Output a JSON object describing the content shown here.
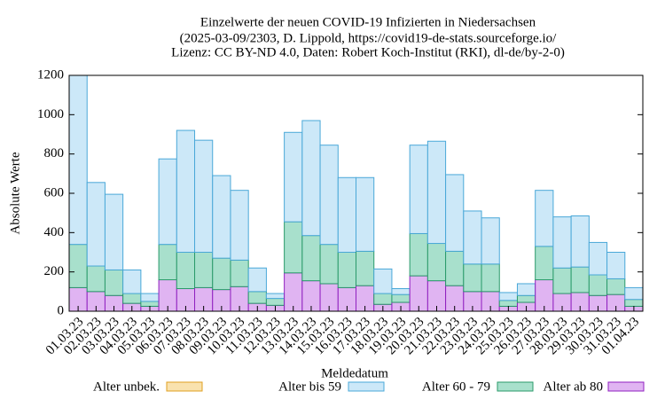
{
  "chart_data": {
    "type": "stacked-bar",
    "title": [
      "Einzelwerte der neuen COVID-19 Infizierten in Niedersachsen",
      "(2025-03-09/2303, D. Lippold, https://covid19-de-stats.sourceforge.io/",
      "Lizenz: CC BY-ND 4.0, Daten: Robert Koch-Institut (RKI), dl-de/by-2-0)"
    ],
    "x_label": "Meldedatum",
    "y_label": "Absolute Werte",
    "categories": [
      "01.03.23",
      "02.03.23",
      "03.03.23",
      "04.03.23",
      "05.03.23",
      "06.03.23",
      "07.03.23",
      "08.03.23",
      "09.03.23",
      "10.03.23",
      "11.03.23",
      "12.03.23",
      "13.03.23",
      "14.03.23",
      "15.03.23",
      "16.03.23",
      "17.03.23",
      "18.03.23",
      "19.03.23",
      "20.03.23",
      "21.03.23",
      "22.03.23",
      "23.03.23",
      "24.03.23",
      "25.03.23",
      "26.03.23",
      "27.03.23",
      "28.03.23",
      "29.03.23",
      "30.03.23",
      "31.03.23",
      "01.04.23"
    ],
    "series": [
      {
        "name": "Alter unbek.",
        "color": "#f9e2ae",
        "stroke": "#e0a020",
        "values": [
          0,
          0,
          0,
          0,
          0,
          0,
          0,
          0,
          0,
          0,
          0,
          0,
          0,
          0,
          0,
          0,
          0,
          0,
          0,
          0,
          0,
          0,
          0,
          0,
          0,
          0,
          0,
          0,
          0,
          0,
          0,
          0
        ]
      },
      {
        "name": "Alter bis 59",
        "color": "#cce8f8",
        "stroke": "#4aa8d8",
        "values": [
          920,
          425,
          385,
          120,
          40,
          435,
          620,
          570,
          420,
          355,
          120,
          25,
          455,
          585,
          505,
          380,
          375,
          125,
          30,
          450,
          520,
          390,
          270,
          235,
          40,
          60,
          285,
          260,
          260,
          165,
          135,
          60
        ]
      },
      {
        "name": "Alter 60 - 79",
        "color": "#a8e0cc",
        "stroke": "#2a9a6a",
        "values": [
          220,
          130,
          130,
          50,
          25,
          180,
          185,
          180,
          160,
          135,
          60,
          35,
          260,
          230,
          200,
          180,
          175,
          55,
          40,
          215,
          190,
          175,
          140,
          140,
          30,
          35,
          170,
          130,
          130,
          105,
          80,
          35
        ]
      },
      {
        "name": "Alter ab 80",
        "color": "#e0b4f2",
        "stroke": "#9020c0",
        "values": [
          120,
          100,
          80,
          40,
          25,
          160,
          115,
          120,
          110,
          125,
          40,
          30,
          195,
          155,
          140,
          120,
          130,
          35,
          45,
          180,
          155,
          130,
          100,
          100,
          25,
          45,
          160,
          90,
          95,
          80,
          85,
          25
        ]
      }
    ],
    "stack_order": [
      3,
      2,
      1,
      0
    ],
    "ylim": [
      0,
      1200
    ],
    "yticks": [
      0,
      200,
      400,
      600,
      800,
      1000,
      1200
    ],
    "grid": false
  }
}
